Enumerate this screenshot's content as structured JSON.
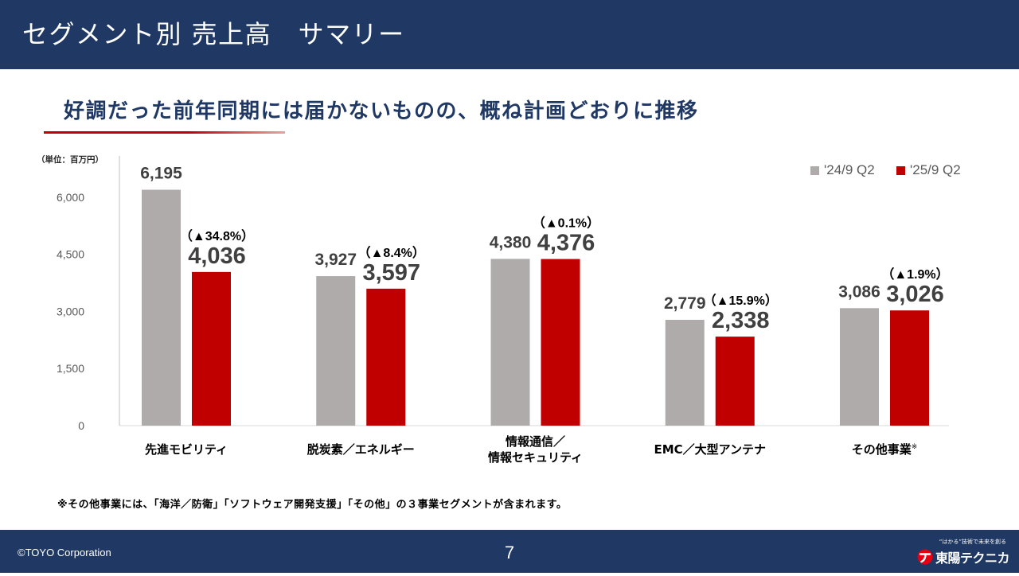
{
  "header": {
    "title": "セグメント別 売上高　サマリー"
  },
  "headline": {
    "text": "好調だった前年同期には届かないものの、概ね計画どおりに推移"
  },
  "colors": {
    "navy": "#1f3864",
    "accent_red": "#c00000",
    "logo_red": "#e60012"
  },
  "chart_data": {
    "type": "bar",
    "unit_label": "（単位：百万円）",
    "categories": [
      "先進モビリティ",
      "脱炭素／エネルギー",
      "情報通信／\n情報セキュリティ",
      "EMC／大型アンテナ",
      "その他事業"
    ],
    "category_marks": [
      "",
      "",
      "",
      "",
      "※"
    ],
    "series": [
      {
        "name": "'24/9 Q2",
        "color": "#afabab",
        "values": [
          6195,
          3927,
          4380,
          2779,
          3086
        ]
      },
      {
        "name": "'25/9 Q2",
        "color": "#c00000",
        "values": [
          4036,
          3597,
          4376,
          2338,
          3026
        ]
      }
    ],
    "change_labels": [
      "（▲34.8%）",
      "（▲8.4%）",
      "（▲0.1%）",
      "（▲15.9%）",
      "（▲1.9%）"
    ],
    "yticks": [
      0,
      1500,
      3000,
      4500,
      6000
    ],
    "ylim": [
      0,
      7000
    ],
    "grid": false,
    "legend_position": "top-right"
  },
  "footnote": "※その他事業には、「海洋／防衛」「ソフトウェア開発支援」「その他」の３事業セグメントが含まれます。",
  "footer": {
    "copyright": "©TOYO Corporation",
    "page_number": "7",
    "logo_tagline": "“はかる”技術で未来を創る",
    "logo_name": "東陽テクニカ"
  }
}
